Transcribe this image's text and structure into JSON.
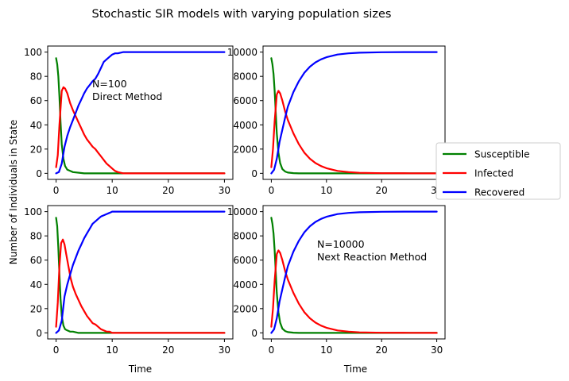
{
  "chart_data": {
    "type": "line",
    "title": "Stochastic SIR models with varying population sizes",
    "ylabel": "Number of Individuals in State",
    "xlabel": "Time",
    "legend": {
      "placement": "right",
      "entries": [
        {
          "name": "Susceptible",
          "color": "#008000"
        },
        {
          "name": "Infected",
          "color": "#ff0000"
        },
        {
          "name": "Recovered",
          "color": "#0000ff"
        }
      ]
    },
    "panels": [
      {
        "id": "p1",
        "annotation": [
          "N=100",
          "Direct Method"
        ],
        "xlim": [
          -1.5,
          31.5
        ],
        "ylim": [
          -5,
          105
        ],
        "xticks": [
          0,
          10,
          20,
          30
        ],
        "yticks": [
          0,
          20,
          40,
          60,
          80,
          100
        ],
        "series": [
          {
            "name": "Susceptible",
            "color": "#008000",
            "x": [
              0,
              0.2,
              0.4,
              0.6,
              0.8,
              1.0,
              1.3,
              1.6,
              2.0,
              2.5,
              3.0,
              5,
              10,
              20,
              30
            ],
            "y": [
              95,
              90,
              80,
              63,
              42,
              24,
              12,
              6,
              3,
              2,
              1,
              0,
              0,
              0,
              0
            ]
          },
          {
            "name": "Infected",
            "color": "#ff0000",
            "x": [
              0,
              0.3,
              0.6,
              1.0,
              1.3,
              1.6,
              2.0,
              2.5,
              3.0,
              3.5,
              4,
              4.5,
              5,
              5.5,
              6,
              6.5,
              7,
              7.5,
              8,
              8.5,
              9,
              9.5,
              10,
              10.5,
              11,
              12,
              14,
              20,
              30
            ],
            "y": [
              5,
              15,
              40,
              68,
              71,
              70,
              66,
              58,
              52,
              47,
              42,
              37,
              32,
              28,
              25,
              22,
              20,
              17,
              14,
              11,
              8,
              6,
              4,
              2,
              1,
              0,
              0,
              0,
              0
            ]
          },
          {
            "name": "Recovered",
            "color": "#0000ff",
            "x": [
              0,
              0.5,
              1.0,
              1.5,
              2.0,
              2.5,
              3.0,
              3.5,
              4,
              4.5,
              5,
              5.5,
              6,
              6.5,
              7,
              7.5,
              8,
              8.5,
              9,
              9.5,
              10,
              10.5,
              11,
              12,
              14,
              20,
              30
            ],
            "y": [
              0,
              1,
              8,
              22,
              31,
              38,
              44,
              50,
              56,
              61,
              66,
              70,
              73,
              76,
              78,
              82,
              87,
              92,
              94,
              96,
              98,
              99,
              99,
              100,
              100,
              100,
              100
            ]
          }
        ]
      },
      {
        "id": "p2",
        "annotation": [],
        "xlim": [
          -1.5,
          31.5
        ],
        "ylim": [
          -500,
          10500
        ],
        "xticks": [
          0,
          10,
          20,
          30
        ],
        "yticks": [
          0,
          2000,
          4000,
          6000,
          8000,
          10000
        ],
        "series": [
          {
            "name": "Susceptible",
            "color": "#008000",
            "x": [
              0,
              0.2,
              0.4,
              0.6,
              0.8,
              1.0,
              1.3,
              1.6,
              2.0,
              2.5,
              3.0,
              4,
              5,
              10,
              30
            ],
            "y": [
              9500,
              9000,
              8200,
              6800,
              5000,
              3300,
              1700,
              850,
              350,
              150,
              60,
              15,
              0,
              0,
              0
            ]
          },
          {
            "name": "Infected",
            "color": "#ff0000",
            "x": [
              0,
              0.3,
              0.6,
              1.0,
              1.3,
              1.6,
              2.0,
              2.5,
              3.0,
              4,
              5,
              6,
              7,
              8,
              9,
              10,
              12,
              14,
              16,
              20,
              25,
              30
            ],
            "y": [
              500,
              2000,
              4300,
              6500,
              6800,
              6600,
              6000,
              5100,
              4400,
              3300,
              2400,
              1700,
              1200,
              850,
              600,
              420,
              200,
              100,
              45,
              10,
              2,
              0
            ]
          },
          {
            "name": "Recovered",
            "color": "#0000ff",
            "x": [
              0,
              0.5,
              1.0,
              1.5,
              2.0,
              2.5,
              3.0,
              4,
              5,
              6,
              7,
              8,
              9,
              10,
              12,
              14,
              16,
              20,
              25,
              30
            ],
            "y": [
              0,
              300,
              1200,
              2600,
              3600,
              4600,
              5500,
              6700,
              7600,
              8300,
              8800,
              9150,
              9400,
              9580,
              9800,
              9900,
              9950,
              9990,
              10000,
              10000
            ]
          }
        ]
      },
      {
        "id": "p3",
        "annotation": [],
        "xlim": [
          -1.5,
          31.5
        ],
        "ylim": [
          -5,
          105
        ],
        "xticks": [
          0,
          10,
          20,
          30
        ],
        "yticks": [
          0,
          20,
          40,
          60,
          80,
          100
        ],
        "series": [
          {
            "name": "Susceptible",
            "color": "#008000",
            "x": [
              0,
              0.2,
              0.4,
              0.6,
              0.8,
              1.0,
              1.3,
              1.6,
              2.0,
              2.5,
              3.0,
              4,
              10,
              20,
              30
            ],
            "y": [
              95,
              88,
              70,
              48,
              28,
              14,
              6,
              3,
              2,
              1,
              1,
              0,
              0,
              0,
              0
            ]
          },
          {
            "name": "Infected",
            "color": "#ff0000",
            "x": [
              0,
              0.3,
              0.6,
              0.9,
              1.2,
              1.5,
              1.8,
              2.2,
              2.6,
              3.0,
              3.5,
              4,
              4.5,
              5,
              5.5,
              6,
              6.5,
              7,
              7.5,
              8,
              8.5,
              9,
              9.5,
              10,
              11,
              15,
              20,
              30
            ],
            "y": [
              5,
              25,
              55,
              74,
              77,
              73,
              65,
              55,
              45,
              38,
              32,
              27,
              22,
              18,
              14,
              11,
              8,
              7,
              5,
              3,
              2,
              1,
              1,
              0,
              0,
              0,
              0,
              0
            ]
          },
          {
            "name": "Recovered",
            "color": "#0000ff",
            "x": [
              0,
              0.5,
              1.0,
              1.5,
              2.0,
              2.5,
              3.0,
              3.5,
              4,
              4.5,
              5,
              5.5,
              6,
              6.5,
              7,
              7.5,
              8,
              8.5,
              9,
              9.5,
              10,
              15,
              20,
              30
            ],
            "y": [
              0,
              2,
              10,
              30,
              40,
              48,
              56,
              62,
              68,
              73,
              78,
              82,
              86,
              90,
              92,
              94,
              96,
              97,
              98,
              99,
              100,
              100,
              100,
              100
            ]
          }
        ]
      },
      {
        "id": "p4",
        "annotation": [
          "N=10000",
          "Next Reaction Method"
        ],
        "xlim": [
          -1.5,
          31.5
        ],
        "ylim": [
          -500,
          10500
        ],
        "xticks": [
          0,
          10,
          20,
          30
        ],
        "yticks": [
          0,
          2000,
          4000,
          6000,
          8000,
          10000
        ],
        "series": [
          {
            "name": "Susceptible",
            "color": "#008000",
            "x": [
              0,
              0.2,
              0.4,
              0.6,
              0.8,
              1.0,
              1.3,
              1.6,
              2.0,
              2.5,
              3.0,
              4,
              5,
              10,
              30
            ],
            "y": [
              9500,
              9000,
              8200,
              6800,
              5000,
              3300,
              1700,
              850,
              350,
              150,
              60,
              15,
              0,
              0,
              0
            ]
          },
          {
            "name": "Infected",
            "color": "#ff0000",
            "x": [
              0,
              0.3,
              0.6,
              1.0,
              1.3,
              1.6,
              2.0,
              2.5,
              3.0,
              4,
              5,
              6,
              7,
              8,
              9,
              10,
              12,
              14,
              16,
              20,
              25,
              30
            ],
            "y": [
              500,
              2000,
              4300,
              6500,
              6800,
              6600,
              6000,
              5100,
              4400,
              3300,
              2400,
              1700,
              1200,
              850,
              600,
              420,
              200,
              100,
              45,
              10,
              2,
              0
            ]
          },
          {
            "name": "Recovered",
            "color": "#0000ff",
            "x": [
              0,
              0.5,
              1.0,
              1.5,
              2.0,
              2.5,
              3.0,
              4,
              5,
              6,
              7,
              8,
              9,
              10,
              12,
              14,
              16,
              20,
              25,
              30
            ],
            "y": [
              0,
              300,
              1200,
              2600,
              3600,
              4600,
              5500,
              6700,
              7600,
              8300,
              8800,
              9150,
              9400,
              9580,
              9800,
              9900,
              9950,
              9990,
              10000,
              10000
            ]
          }
        ]
      }
    ]
  }
}
